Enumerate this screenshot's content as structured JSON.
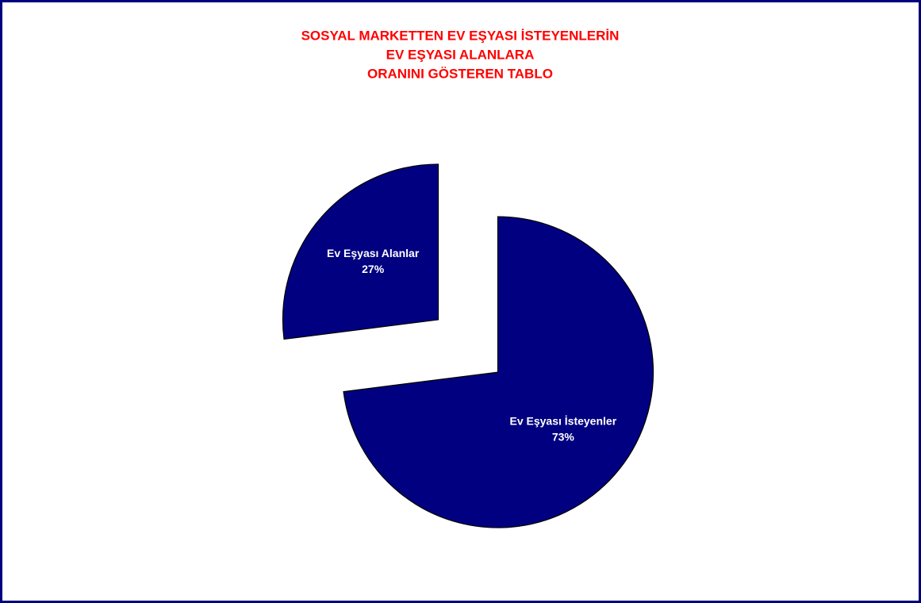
{
  "chart_data": {
    "type": "pie",
    "title": [
      "SOSYAL MARKETTEN EV EŞYASI İSTEYENLERİN",
      "EV EŞYASI ALANLARA",
      "ORANINI GÖSTEREN TABLO"
    ],
    "categories": [
      "Ev Eşyası İsteyenler",
      "Ev Eşyası Alanlar"
    ],
    "values": [
      73,
      27
    ],
    "value_labels": [
      "73%",
      "27%"
    ],
    "color": "#000080"
  }
}
